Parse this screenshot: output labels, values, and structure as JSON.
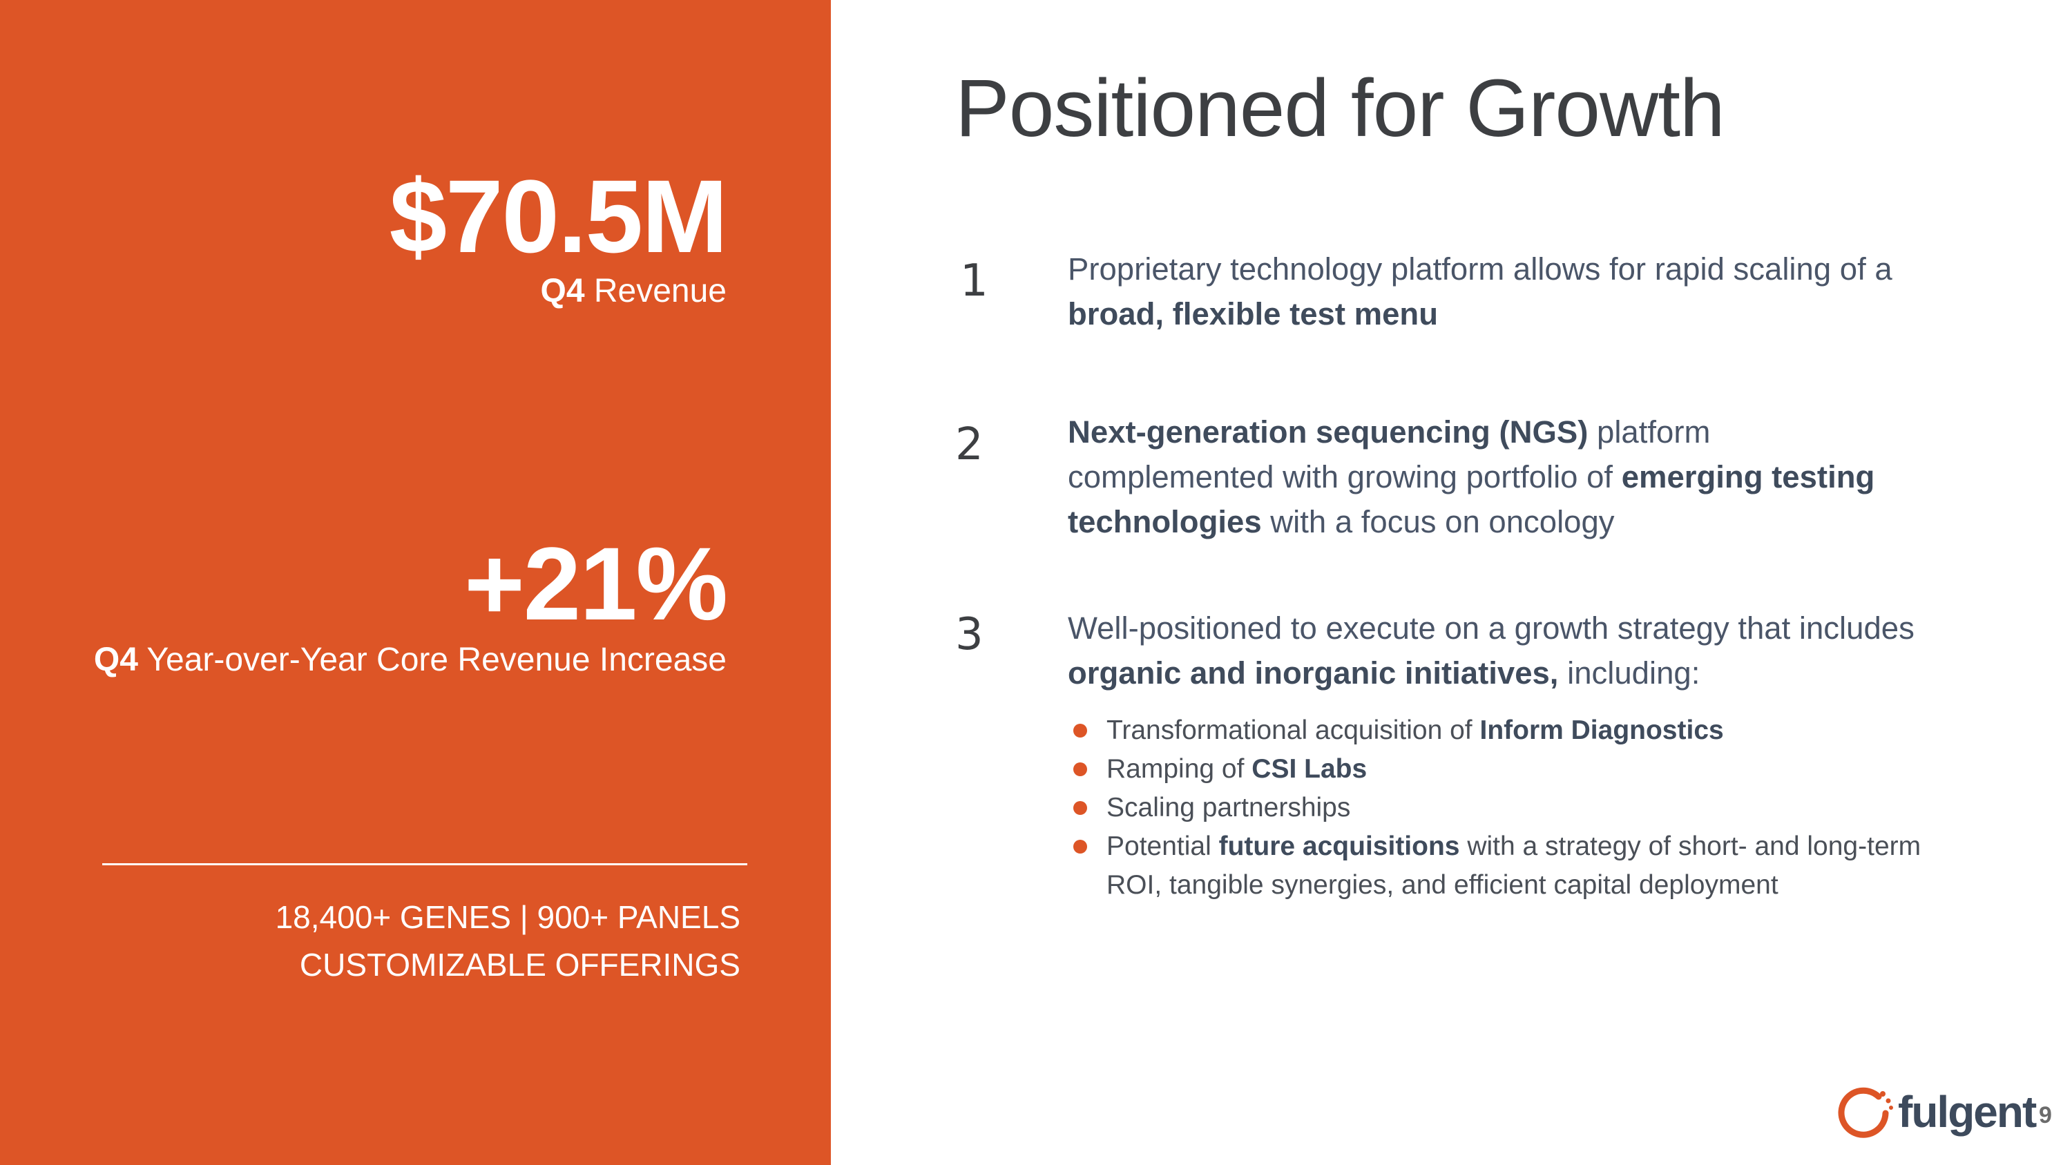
{
  "left_panel": {
    "stat1": {
      "value": "$70.5M",
      "caption_bold": "Q4",
      "caption_rest": " Revenue"
    },
    "stat2": {
      "value": "+21%",
      "caption_bold": "Q4",
      "caption_rest": " Year-over-Year Core Revenue Increase"
    },
    "offerings": {
      "line1": "18,400+ GENES  | 900+ PANELS",
      "line2": "CUSTOMIZABLE OFFERINGS"
    }
  },
  "title": "Positioned for Growth",
  "points": [
    {
      "number": "1",
      "t1": "Proprietary technology platform allows for rapid scaling of a ",
      "b1": "broad, flexible test menu"
    },
    {
      "number": "2",
      "b1": "Next-generation sequencing (NGS)",
      "t1": " platform complemented with growing portfolio of ",
      "b2": "emerging testing technologies",
      "t2": " with a focus on oncology"
    },
    {
      "number": "3",
      "t1": "Well-positioned to execute on a growth strategy that includes ",
      "b1": "organic and inorganic initiatives,",
      "t2": " including:"
    }
  ],
  "bullets": [
    {
      "t1": "Transformational acquisition of ",
      "b1": "Inform Diagnostics"
    },
    {
      "t1": "Ramping of ",
      "b1": "CSI Labs"
    },
    {
      "t1": "Scaling partnerships"
    },
    {
      "t1": "Potential ",
      "b1": "future acquisitions",
      "t2": " with a strategy of short- and long-term ROI, tangible synergies, and efficient capital deployment"
    }
  ],
  "logo": {
    "text": "fulgent",
    "icon": "fulgent-ring-logo-icon"
  },
  "page_number": "9",
  "colors": {
    "accent": "#dd5526",
    "title": "#3d3f42",
    "body": "#4a5568"
  }
}
